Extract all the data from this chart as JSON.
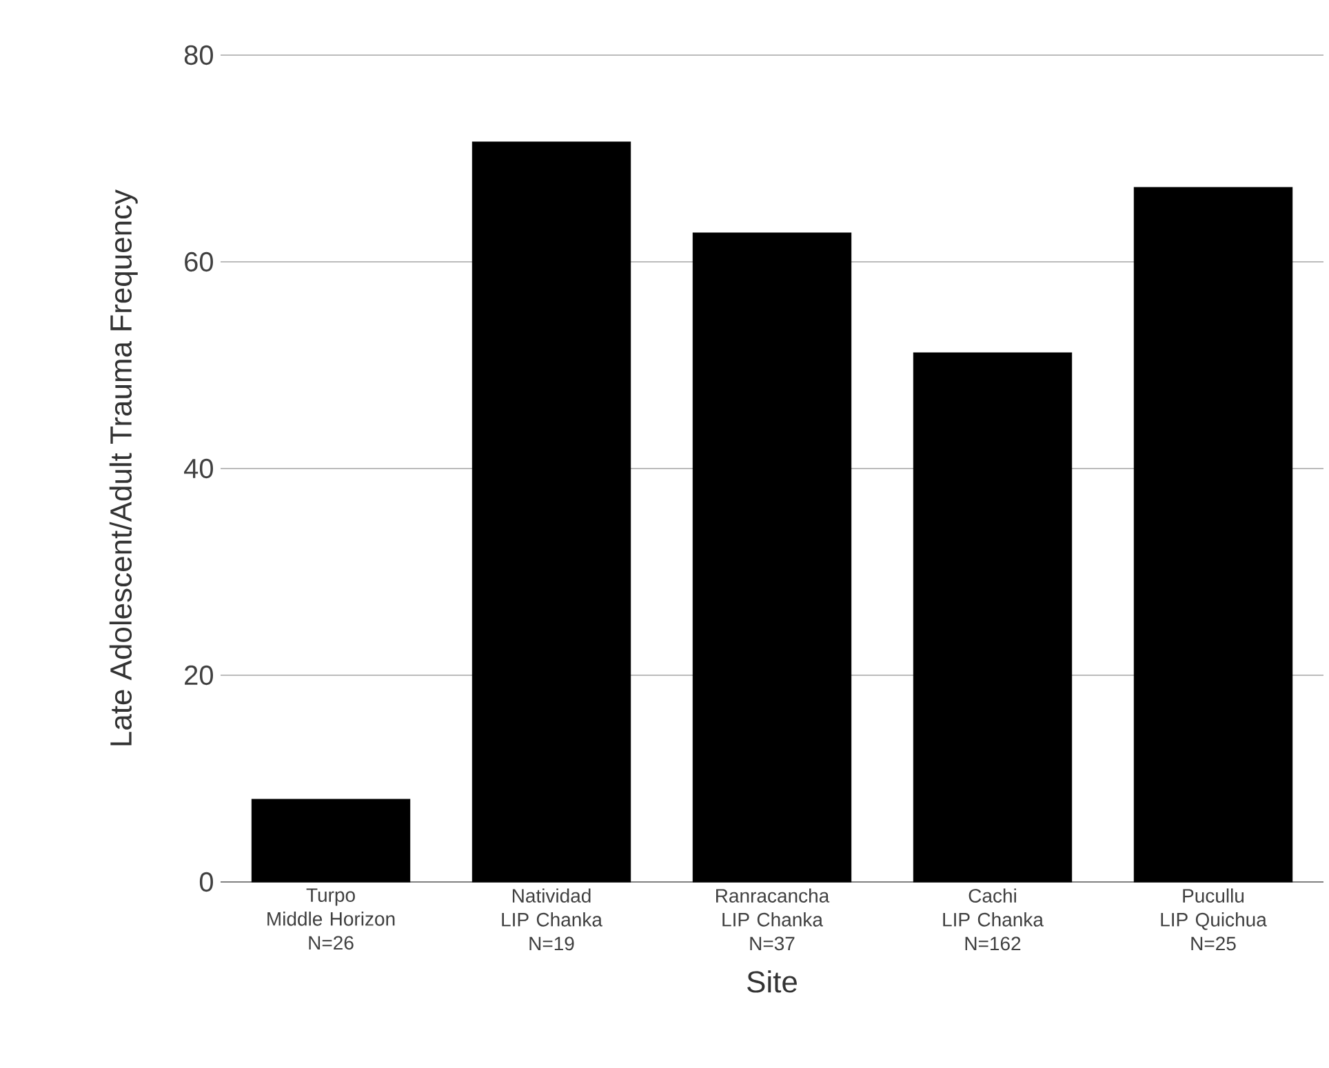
{
  "chart_data": {
    "type": "bar",
    "xlabel": "Site",
    "ylabel": "Late Adolescent/Adult Trauma Frequency",
    "categories": [
      "Turpo\nMiddle Horizon\nN=26",
      "Natividad\nLIP Chanka\nN=19",
      "Ranracancha\nLIP Chanka\nN=37",
      "Cachi\nLIP Chanka\nN=162",
      "Pucullu\nLIP Quichua\nN=25"
    ],
    "values": [
      8,
      71.6,
      62.8,
      51.2,
      67.2
    ],
    "color": "#000000",
    "ylim": [
      0,
      80
    ],
    "yticks": [
      0,
      20,
      40,
      60,
      80
    ],
    "grid": "y"
  }
}
